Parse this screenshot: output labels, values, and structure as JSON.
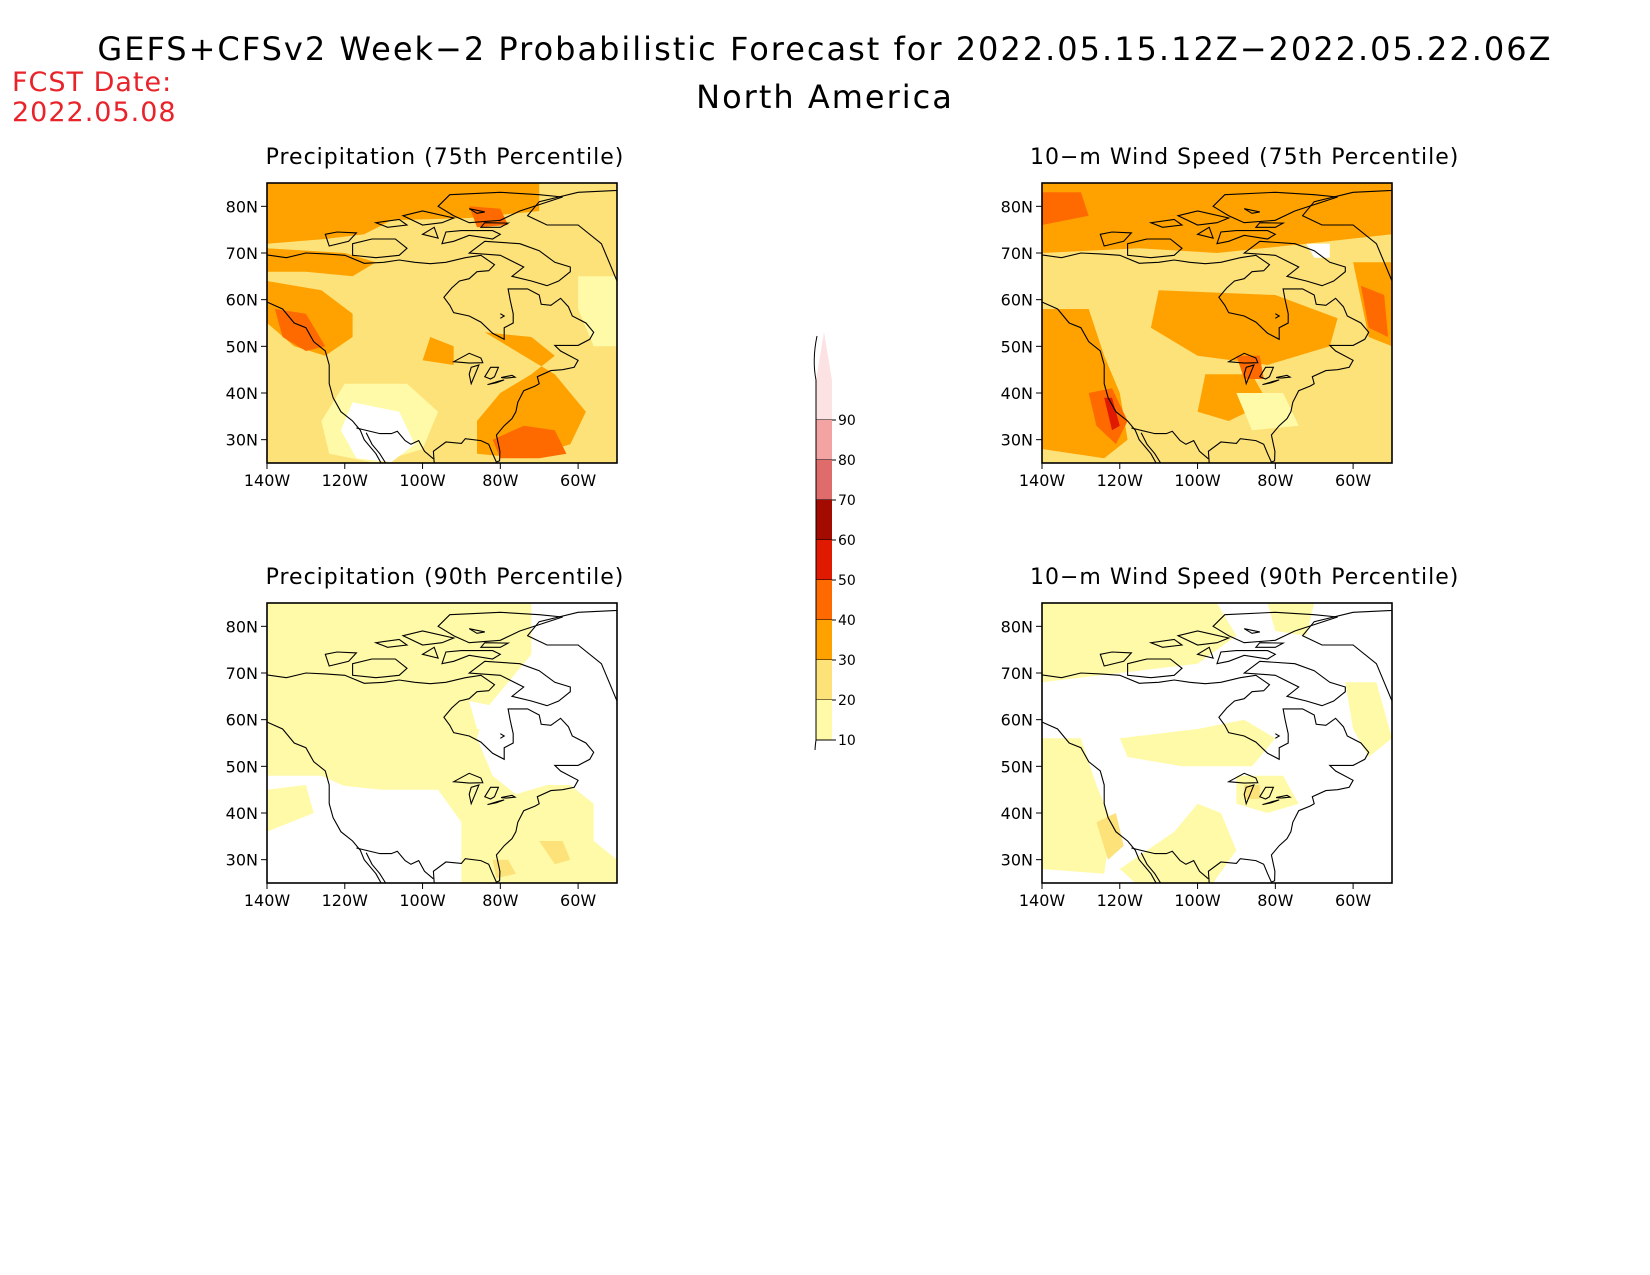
{
  "header": {
    "title": "GEFS+CFSv2 Week−2 Probabilistic Forecast for 2022.05.15.12Z−2022.05.22.06Z",
    "subtitle": "North America",
    "fcst_label": "FCST Date:",
    "fcst_date": "2022.05.08"
  },
  "axes": {
    "lon_ticks": [
      "140W",
      "120W",
      "100W",
      "80W",
      "60W"
    ],
    "lat_ticks": [
      "80N",
      "70N",
      "60N",
      "50N",
      "40N",
      "30N"
    ],
    "lon_range": [
      -140,
      -50
    ],
    "lat_range": [
      25,
      85
    ]
  },
  "panels": [
    {
      "id": "p75",
      "title": "Precipitation (75th Percentile)",
      "variable": "precipitation",
      "percentile": 75,
      "dominant_category": "20-30"
    },
    {
      "id": "w75",
      "title": "10−m Wind Speed (75th Percentile)",
      "variable": "wind",
      "percentile": 75,
      "dominant_category": "30-40"
    },
    {
      "id": "p90",
      "title": "Precipitation (90th Percentile)",
      "variable": "precipitation",
      "percentile": 90,
      "dominant_category": "10-20"
    },
    {
      "id": "w90",
      "title": "10−m Wind Speed (90th Percentile)",
      "variable": "wind",
      "percentile": 90,
      "dominant_category": "10-20"
    }
  ],
  "colorbar": {
    "labels": [
      "90",
      "80",
      "70",
      "60",
      "50",
      "40",
      "30",
      "20",
      "10"
    ],
    "colors": [
      "#fde2e4",
      "#f4a3a3",
      "#e06b6b",
      "#a30a00",
      "#e01a00",
      "#ff6a00",
      "#ffa200",
      "#fde27a",
      "#fffaa8"
    ]
  },
  "palette": {
    "c10": "#fffaa8",
    "c20": "#fde27a",
    "c30": "#ffa200",
    "c40": "#ff6a00",
    "c50": "#e01a00",
    "coast": "#000000",
    "date_red": "#e8232a"
  }
}
